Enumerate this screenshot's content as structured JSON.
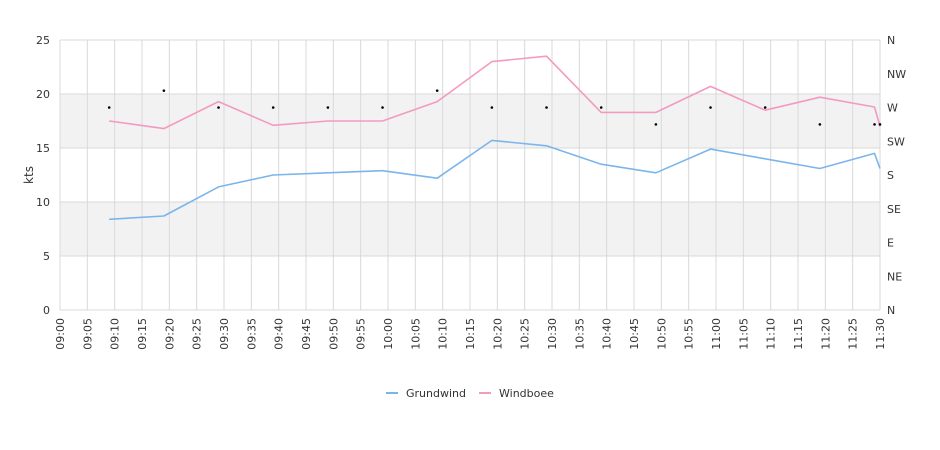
{
  "chart_data": {
    "type": "line",
    "ylabel": "kts",
    "ylim": [
      0,
      25
    ],
    "y_ticks": [
      "0",
      "5",
      "10",
      "15",
      "20",
      "25"
    ],
    "direction_ticks": [
      "N",
      "NE",
      "E",
      "SE",
      "S",
      "SW",
      "W",
      "NW",
      "N"
    ],
    "x_ticks": [
      "09:00",
      "09:05",
      "09:10",
      "09:15",
      "09:20",
      "09:25",
      "09:30",
      "09:35",
      "09:40",
      "09:45",
      "09:50",
      "09:55",
      "10:00",
      "10:05",
      "10:10",
      "10:15",
      "10:20",
      "10:25",
      "10:30",
      "10:35",
      "10:40",
      "10:45",
      "10:50",
      "10:55",
      "11:00",
      "11:05",
      "11:10",
      "11:15",
      "11:20",
      "11:25",
      "11:30"
    ],
    "x_range": [
      "09:00",
      "11:30"
    ],
    "grid": true,
    "shaded_bands": [
      [
        5,
        10
      ],
      [
        15,
        20
      ]
    ],
    "legend_position": "bottom-center",
    "series": [
      {
        "name": "Grundwind",
        "color": "#7cb5ec",
        "points": [
          [
            "09:09",
            8.4
          ],
          [
            "09:19",
            8.7
          ],
          [
            "09:29",
            11.4
          ],
          [
            "09:39",
            12.5
          ],
          [
            "09:49",
            12.7
          ],
          [
            "09:59",
            12.9
          ],
          [
            "10:09",
            12.2
          ],
          [
            "10:19",
            15.7
          ],
          [
            "10:29",
            15.2
          ],
          [
            "10:39",
            13.5
          ],
          [
            "10:49",
            12.7
          ],
          [
            "10:59",
            14.9
          ],
          [
            "11:09",
            14.0
          ],
          [
            "11:19",
            13.1
          ],
          [
            "11:29",
            14.5
          ],
          [
            "11:30",
            13.1
          ]
        ]
      },
      {
        "name": "Windboee",
        "color": "#f49ac1",
        "points": [
          [
            "09:09",
            17.5
          ],
          [
            "09:19",
            16.8
          ],
          [
            "09:29",
            19.3
          ],
          [
            "09:39",
            17.1
          ],
          [
            "09:49",
            17.5
          ],
          [
            "09:59",
            17.5
          ],
          [
            "10:09",
            19.3
          ],
          [
            "10:19",
            23.0
          ],
          [
            "10:29",
            23.5
          ],
          [
            "10:39",
            18.3
          ],
          [
            "10:49",
            18.3
          ],
          [
            "10:59",
            20.7
          ],
          [
            "11:09",
            18.5
          ],
          [
            "11:19",
            19.7
          ],
          [
            "11:29",
            18.8
          ],
          [
            "11:30",
            17.0
          ]
        ]
      }
    ],
    "direction_series": {
      "color": "#000000",
      "points": [
        [
          "09:09",
          "W"
        ],
        [
          "09:19",
          "WNW"
        ],
        [
          "09:29",
          "W"
        ],
        [
          "09:39",
          "W"
        ],
        [
          "09:49",
          "W"
        ],
        [
          "09:59",
          "W"
        ],
        [
          "10:09",
          "WNW"
        ],
        [
          "10:19",
          "W"
        ],
        [
          "10:29",
          "W"
        ],
        [
          "10:39",
          "W"
        ],
        [
          "10:49",
          "WSW"
        ],
        [
          "10:59",
          "W"
        ],
        [
          "11:09",
          "W"
        ],
        [
          "11:19",
          "WSW"
        ],
        [
          "11:29",
          "WSW"
        ],
        [
          "11:30",
          "WSW"
        ]
      ]
    }
  }
}
